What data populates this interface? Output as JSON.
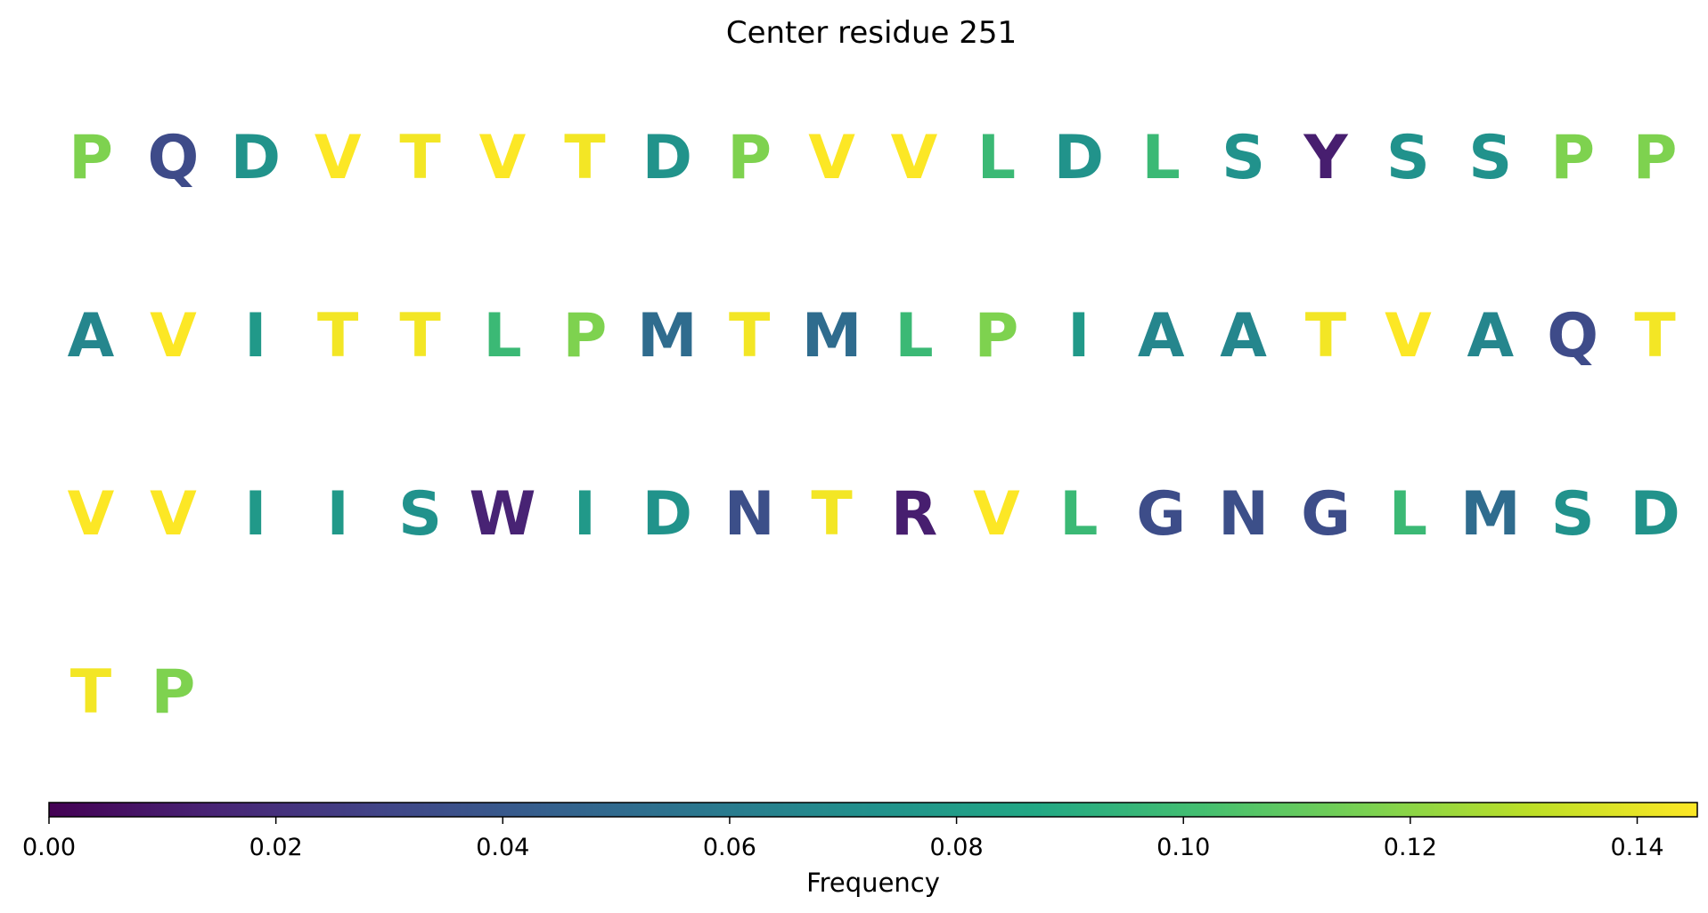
{
  "chart_data": {
    "type": "sequence-logo",
    "title": "Center residue 251",
    "residues": [
      {
        "letter": "P",
        "frequency": 0.117
      },
      {
        "letter": "Q",
        "frequency": 0.033
      },
      {
        "letter": "D",
        "frequency": 0.074
      },
      {
        "letter": "V",
        "frequency": 0.145
      },
      {
        "letter": "T",
        "frequency": 0.143
      },
      {
        "letter": "V",
        "frequency": 0.145
      },
      {
        "letter": "T",
        "frequency": 0.143
      },
      {
        "letter": "D",
        "frequency": 0.074
      },
      {
        "letter": "P",
        "frequency": 0.117
      },
      {
        "letter": "V",
        "frequency": 0.145
      },
      {
        "letter": "V",
        "frequency": 0.145
      },
      {
        "letter": "L",
        "frequency": 0.098
      },
      {
        "letter": "D",
        "frequency": 0.074
      },
      {
        "letter": "L",
        "frequency": 0.098
      },
      {
        "letter": "S",
        "frequency": 0.073
      },
      {
        "letter": "Y",
        "frequency": 0.012
      },
      {
        "letter": "S",
        "frequency": 0.073
      },
      {
        "letter": "S",
        "frequency": 0.073
      },
      {
        "letter": "P",
        "frequency": 0.117
      },
      {
        "letter": "P",
        "frequency": 0.117
      },
      {
        "letter": "A",
        "frequency": 0.066
      },
      {
        "letter": "V",
        "frequency": 0.145
      },
      {
        "letter": "I",
        "frequency": 0.078
      },
      {
        "letter": "T",
        "frequency": 0.143
      },
      {
        "letter": "T",
        "frequency": 0.143
      },
      {
        "letter": "L",
        "frequency": 0.098
      },
      {
        "letter": "P",
        "frequency": 0.117
      },
      {
        "letter": "M",
        "frequency": 0.051
      },
      {
        "letter": "T",
        "frequency": 0.143
      },
      {
        "letter": "M",
        "frequency": 0.051
      },
      {
        "letter": "L",
        "frequency": 0.098
      },
      {
        "letter": "P",
        "frequency": 0.117
      },
      {
        "letter": "I",
        "frequency": 0.078
      },
      {
        "letter": "A",
        "frequency": 0.066
      },
      {
        "letter": "A",
        "frequency": 0.066
      },
      {
        "letter": "T",
        "frequency": 0.143
      },
      {
        "letter": "V",
        "frequency": 0.145
      },
      {
        "letter": "A",
        "frequency": 0.066
      },
      {
        "letter": "Q",
        "frequency": 0.033
      },
      {
        "letter": "T",
        "frequency": 0.143
      },
      {
        "letter": "V",
        "frequency": 0.145
      },
      {
        "letter": "V",
        "frequency": 0.145
      },
      {
        "letter": "I",
        "frequency": 0.078
      },
      {
        "letter": "I",
        "frequency": 0.078
      },
      {
        "letter": "S",
        "frequency": 0.073
      },
      {
        "letter": "W",
        "frequency": 0.014
      },
      {
        "letter": "I",
        "frequency": 0.078
      },
      {
        "letter": "D",
        "frequency": 0.074
      },
      {
        "letter": "N",
        "frequency": 0.035
      },
      {
        "letter": "T",
        "frequency": 0.143
      },
      {
        "letter": "R",
        "frequency": 0.012
      },
      {
        "letter": "V",
        "frequency": 0.145
      },
      {
        "letter": "L",
        "frequency": 0.098
      },
      {
        "letter": "G",
        "frequency": 0.034
      },
      {
        "letter": "N",
        "frequency": 0.035
      },
      {
        "letter": "G",
        "frequency": 0.034
      },
      {
        "letter": "L",
        "frequency": 0.098
      },
      {
        "letter": "M",
        "frequency": 0.051
      },
      {
        "letter": "S",
        "frequency": 0.073
      },
      {
        "letter": "D",
        "frequency": 0.074
      },
      {
        "letter": "T",
        "frequency": 0.143
      },
      {
        "letter": "P",
        "frequency": 0.117
      }
    ],
    "colorbar": {
      "colormap": "viridis",
      "label": "Frequency",
      "range": [
        0.0,
        0.1453
      ],
      "ticks": [
        0.0,
        0.02,
        0.04,
        0.06,
        0.08,
        0.1,
        0.12,
        0.14
      ],
      "tick_labels": [
        "0.00",
        "0.02",
        "0.04",
        "0.06",
        "0.08",
        "0.10",
        "0.12",
        "0.14"
      ]
    }
  }
}
